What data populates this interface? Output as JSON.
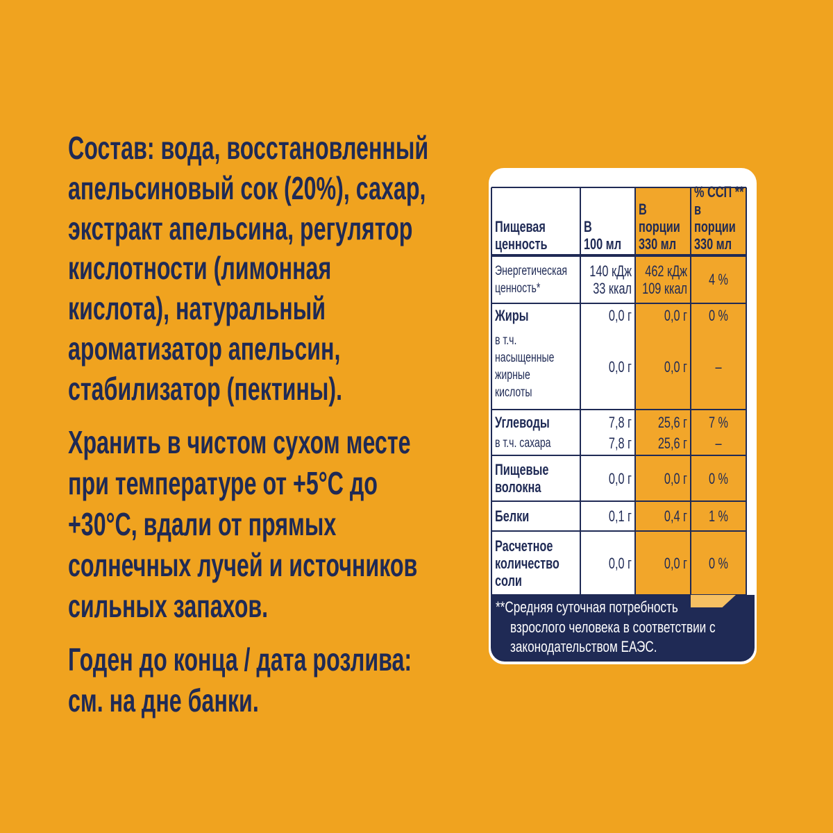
{
  "composition": {
    "lines": [
      "Состав: вода, восстановленный",
      "апельсиновый сок (20%), сахар,",
      "экстракт апельсина, регулятор",
      "кислотности (лимонная",
      "кислота), натуральный",
      "ароматизатор апельсин,",
      "стабилизатор (пектины)."
    ]
  },
  "storage": {
    "lines": [
      "Хранить в чистом сухом месте",
      "при температуре от +5°С до",
      "+30°С, вдали от прямых",
      "солнечных лучей и источников",
      "сильных запахов."
    ]
  },
  "expiry": {
    "lines": [
      "Годен до конца / дата розлива:",
      "см. на дне банки."
    ]
  },
  "nutrition_table": {
    "header": [
      [
        "Пищевая",
        "ценность"
      ],
      [
        "В",
        "100 мл"
      ],
      [
        "В",
        "порции",
        "330 мл"
      ],
      [
        "% ССП **",
        "в порции",
        "330 мл"
      ]
    ],
    "rows": [
      {
        "subrows": [
          [
            [
              "Энергетическая",
              "ценность*"
            ],
            [
              "140 кДж",
              "33 ккал"
            ],
            [
              "462 кДж",
              "109 ккал"
            ],
            [
              "4 %"
            ]
          ]
        ]
      },
      {
        "subrows": [
          [
            [
              "Жиры"
            ],
            [
              "0,0 г"
            ],
            [
              "0,0 г"
            ],
            [
              "0 %"
            ]
          ],
          [
            [
              "в т.ч.",
              "насыщенные",
              "жирные",
              "кислоты"
            ],
            [
              "0,0 г"
            ],
            [
              "0,0 г"
            ],
            [
              "–"
            ]
          ]
        ]
      },
      {
        "subrows": [
          [
            [
              "Углеводы"
            ],
            [
              "7,8 г"
            ],
            [
              "25,6 г"
            ],
            [
              "7 %"
            ]
          ],
          [
            [
              "в т.ч. сахара"
            ],
            [
              "7,8 г"
            ],
            [
              "25,6 г"
            ],
            [
              "–"
            ]
          ]
        ]
      },
      {
        "subrows": [
          [
            [
              "Пищевые",
              "волокна"
            ],
            [
              "0,0 г"
            ],
            [
              "0,0 г"
            ],
            [
              "0 %"
            ]
          ]
        ]
      },
      {
        "subrows": [
          [
            [
              "Белки"
            ],
            [
              "0,1 г"
            ],
            [
              "0,4 г"
            ],
            [
              "1 %"
            ]
          ]
        ]
      },
      {
        "subrows": [
          [
            [
              "Расчетное",
              "количество",
              "соли"
            ],
            [
              "0,0 г"
            ],
            [
              "0,0 г"
            ],
            [
              "0 %"
            ]
          ]
        ]
      }
    ]
  },
  "footnote": {
    "lines": [
      "**Средняя суточная потребность",
      "взрослого человека в соответствии с",
      "законодательством ЕАЭС."
    ]
  }
}
